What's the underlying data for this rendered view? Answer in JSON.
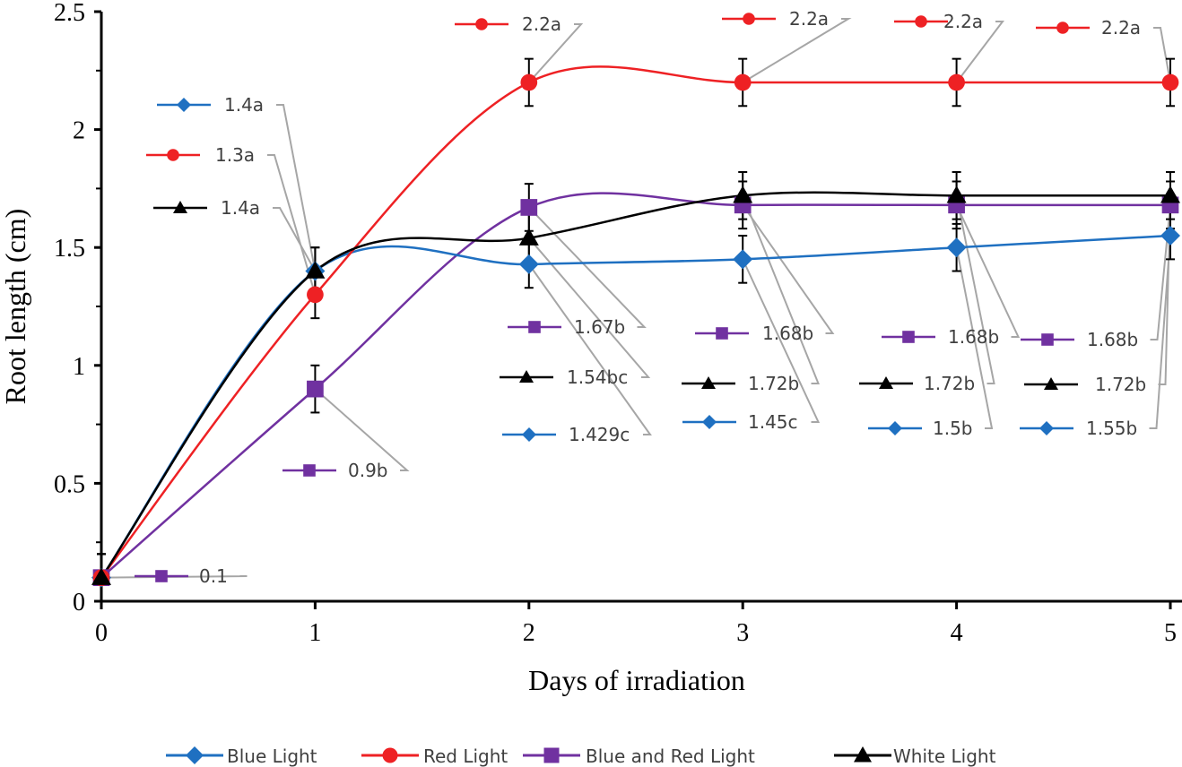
{
  "chart_data": {
    "type": "line",
    "title": "",
    "xlabel": "Days of irradiation",
    "ylabel": "Root length (cm)",
    "x": [
      0,
      1,
      2,
      3,
      4,
      5
    ],
    "xlim": [
      0,
      5
    ],
    "ylim": [
      0,
      2.5
    ],
    "xticks": [
      "0",
      "1",
      "2",
      "3",
      "4",
      "5"
    ],
    "yticks": [
      "0",
      "0.5",
      "1",
      "1.5",
      "2",
      "2.5"
    ],
    "grid": false,
    "smoothed": true,
    "error_bar": 0.1,
    "legend_position": "bottom",
    "series": [
      {
        "name": "Blue Light",
        "color": "#1f70c1",
        "marker": "diamond",
        "values": [
          0.1,
          1.4,
          1.429,
          1.45,
          1.5,
          1.55
        ]
      },
      {
        "name": "Red Light",
        "color": "#ee2124",
        "marker": "circle",
        "values": [
          0.1,
          1.3,
          2.2,
          2.2,
          2.2,
          2.2
        ]
      },
      {
        "name": "Blue and Red Light",
        "color": "#7031a0",
        "marker": "square",
        "values": [
          0.1,
          0.9,
          1.67,
          1.68,
          1.68,
          1.68
        ]
      },
      {
        "name": "White Light",
        "color": "#000000",
        "marker": "triangle",
        "values": [
          0.1,
          1.4,
          1.54,
          1.72,
          1.72,
          1.72
        ]
      }
    ],
    "data_labels": [
      {
        "series": 0,
        "point": 1,
        "text": "1.4a"
      },
      {
        "series": 1,
        "point": 1,
        "text": "1.3a"
      },
      {
        "series": 3,
        "point": 1,
        "text": "1.4a"
      },
      {
        "series": 2,
        "point": 1,
        "text": "0.9b"
      },
      {
        "series": 2,
        "point": 0,
        "text": "0.1"
      },
      {
        "series": 1,
        "point": 2,
        "text": "2.2a"
      },
      {
        "series": 1,
        "point": 3,
        "text": "2.2a"
      },
      {
        "series": 1,
        "point": 4,
        "text": "2.2a"
      },
      {
        "series": 1,
        "point": 5,
        "text": "2.2a"
      },
      {
        "series": 2,
        "point": 2,
        "text": "1.67b"
      },
      {
        "series": 3,
        "point": 2,
        "text": "1.54bc"
      },
      {
        "series": 0,
        "point": 2,
        "text": "1.429c"
      },
      {
        "series": 2,
        "point": 3,
        "text": "1.68b"
      },
      {
        "series": 3,
        "point": 3,
        "text": "1.72b"
      },
      {
        "series": 0,
        "point": 3,
        "text": "1.45c"
      },
      {
        "series": 2,
        "point": 4,
        "text": "1.68b"
      },
      {
        "series": 3,
        "point": 4,
        "text": "1.72b"
      },
      {
        "series": 0,
        "point": 4,
        "text": "1.5b"
      },
      {
        "series": 2,
        "point": 5,
        "text": "1.68b"
      },
      {
        "series": 3,
        "point": 5,
        "text": "1.72b"
      },
      {
        "series": 0,
        "point": 5,
        "text": "1.55b"
      }
    ]
  }
}
